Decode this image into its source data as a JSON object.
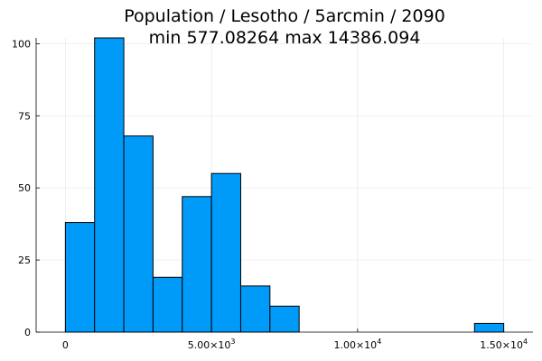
{
  "chart_data": {
    "type": "bar",
    "title_lines": [
      "Population / Lesotho / 5arcmin / 2090",
      "min 577.08264  max 14386.094"
    ],
    "xlabel": "",
    "ylabel": "",
    "xlim": [
      -1000,
      16000
    ],
    "ylim": [
      0,
      102
    ],
    "grid": true,
    "legend": "none",
    "bar_color": "#009af9",
    "bins": [
      {
        "start": 0,
        "end": 1000,
        "count": 38
      },
      {
        "start": 1000,
        "end": 2000,
        "count": 102
      },
      {
        "start": 2000,
        "end": 3000,
        "count": 68
      },
      {
        "start": 3000,
        "end": 4000,
        "count": 19
      },
      {
        "start": 4000,
        "end": 5000,
        "count": 47
      },
      {
        "start": 5000,
        "end": 6000,
        "count": 55
      },
      {
        "start": 6000,
        "end": 7000,
        "count": 16
      },
      {
        "start": 7000,
        "end": 8000,
        "count": 9
      },
      {
        "start": 14000,
        "end": 15000,
        "count": 3
      }
    ],
    "x_ticks": [
      {
        "value": 0,
        "mantissa": "0",
        "exponent": ""
      },
      {
        "value": 5000,
        "mantissa": "5.00×10",
        "exponent": "3"
      },
      {
        "value": 10000,
        "mantissa": "1.00×10",
        "exponent": "4"
      },
      {
        "value": 15000,
        "mantissa": "1.50×10",
        "exponent": "4"
      }
    ],
    "y_ticks": [
      {
        "value": 0,
        "label": "0"
      },
      {
        "value": 25,
        "label": "25"
      },
      {
        "value": 50,
        "label": "50"
      },
      {
        "value": 75,
        "label": "75"
      },
      {
        "value": 100,
        "label": "100"
      }
    ]
  }
}
